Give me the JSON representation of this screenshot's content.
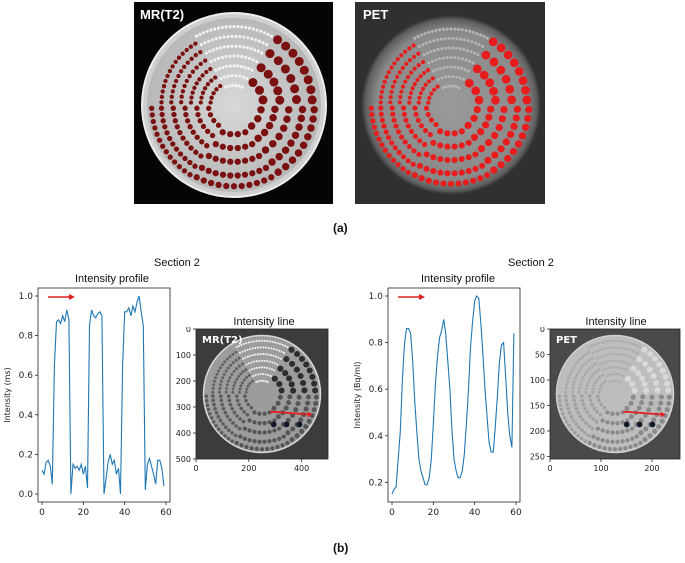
{
  "figure_a": {
    "label": "(a)",
    "left_image": {
      "title": "MR(T2)"
    },
    "right_image": {
      "title": "PET"
    }
  },
  "figure_b": {
    "label": "(b)",
    "left": {
      "section": "Section 2",
      "profile_title": "Intensity profile",
      "line_title": "Intensity line",
      "image_label": "MR(T2)"
    },
    "right": {
      "section": "Section 2",
      "profile_title": "Intensity profile",
      "line_title": "Intensity line",
      "image_label": "PET"
    }
  },
  "chart_data": [
    {
      "type": "line",
      "name": "mr-profile",
      "title": "Intensity profile",
      "xlabel": "",
      "ylabel": "Intensity (ms)",
      "xlim": [
        0,
        60
      ],
      "ylim": [
        0,
        1.0
      ],
      "xticks": [
        0,
        20,
        40,
        60
      ],
      "yticks": [
        0.0,
        0.2,
        0.4,
        0.6,
        0.8,
        1.0
      ],
      "series": [
        {
          "name": "MR",
          "color": "#1f77b4",
          "x": [
            0,
            1,
            2,
            3,
            4,
            5,
            6,
            7,
            8,
            9,
            10,
            11,
            12,
            13,
            14,
            15,
            16,
            17,
            18,
            19,
            20,
            21,
            22,
            23,
            24,
            25,
            26,
            27,
            28,
            29,
            30,
            31,
            32,
            33,
            34,
            35,
            36,
            37,
            38,
            39,
            40,
            41,
            42,
            43,
            44,
            45,
            46,
            47,
            48,
            49,
            50,
            51,
            52,
            53,
            54,
            55,
            56,
            57,
            58,
            59
          ],
          "y": [
            0.12,
            0.1,
            0.16,
            0.17,
            0.14,
            0.05,
            0.65,
            0.87,
            0.88,
            0.86,
            0.9,
            0.87,
            0.93,
            0.88,
            0.0,
            0.15,
            0.13,
            0.14,
            0.12,
            0.15,
            0.1,
            0.14,
            0.03,
            0.85,
            0.93,
            0.9,
            0.89,
            0.91,
            0.92,
            0.9,
            0.0,
            0.08,
            0.16,
            0.2,
            0.15,
            0.17,
            0.1,
            0.13,
            0.0,
            0.65,
            0.92,
            0.92,
            0.94,
            0.9,
            0.95,
            0.92,
            0.97,
            1.0,
            0.92,
            0.85,
            0.02,
            0.15,
            0.18,
            0.14,
            0.1,
            0.05,
            0.17,
            0.17,
            0.13,
            0.04
          ]
        }
      ]
    },
    {
      "type": "line",
      "name": "pet-profile",
      "title": "Intensity profile",
      "xlabel": "",
      "ylabel": "Intensity (Bq/ml)",
      "xlim": [
        0,
        60
      ],
      "ylim": [
        0.15,
        1.0
      ],
      "xticks": [
        0,
        20,
        40,
        60
      ],
      "yticks": [
        0.2,
        0.4,
        0.6,
        0.8,
        1.0
      ],
      "series": [
        {
          "name": "PET",
          "color": "#1f77b4",
          "x": [
            0,
            1,
            2,
            3,
            4,
            5,
            6,
            7,
            8,
            9,
            10,
            11,
            12,
            13,
            14,
            15,
            16,
            17,
            18,
            19,
            20,
            21,
            22,
            23,
            24,
            25,
            26,
            27,
            28,
            29,
            30,
            31,
            32,
            33,
            34,
            35,
            36,
            37,
            38,
            39,
            40,
            41,
            42,
            43,
            44,
            45,
            46,
            47,
            48,
            49,
            50,
            51,
            52,
            53,
            54,
            55,
            56,
            57,
            58,
            59
          ],
          "y": [
            0.15,
            0.17,
            0.18,
            0.3,
            0.42,
            0.63,
            0.79,
            0.86,
            0.86,
            0.84,
            0.72,
            0.55,
            0.42,
            0.3,
            0.25,
            0.22,
            0.19,
            0.19,
            0.22,
            0.3,
            0.45,
            0.62,
            0.74,
            0.82,
            0.85,
            0.9,
            0.84,
            0.72,
            0.6,
            0.43,
            0.3,
            0.25,
            0.22,
            0.22,
            0.25,
            0.32,
            0.45,
            0.6,
            0.78,
            0.89,
            0.98,
            1.0,
            0.99,
            0.88,
            0.75,
            0.6,
            0.48,
            0.37,
            0.33,
            0.33,
            0.44,
            0.57,
            0.72,
            0.79,
            0.8,
            0.65,
            0.5,
            0.4,
            0.35,
            0.84
          ]
        }
      ]
    },
    {
      "type": "image",
      "name": "mr-line-image",
      "title": "Intensity line",
      "xticks": [
        0,
        200,
        400
      ],
      "yticks": [
        0,
        100,
        200,
        300,
        400,
        500
      ],
      "xlim": [
        0,
        500
      ],
      "ylim": [
        0,
        500
      ]
    },
    {
      "type": "image",
      "name": "pet-line-image",
      "title": "Intensity line",
      "xticks": [
        0,
        100,
        200
      ],
      "yticks": [
        0,
        50,
        100,
        150,
        200,
        250
      ],
      "xlim": [
        0,
        255
      ],
      "ylim": [
        0,
        255
      ]
    }
  ],
  "colors": {
    "line": "#1f77b4",
    "arrow": "#e02020",
    "dot_dark_red": "#7a1010",
    "dot_bright_red": "#e81c1c"
  }
}
